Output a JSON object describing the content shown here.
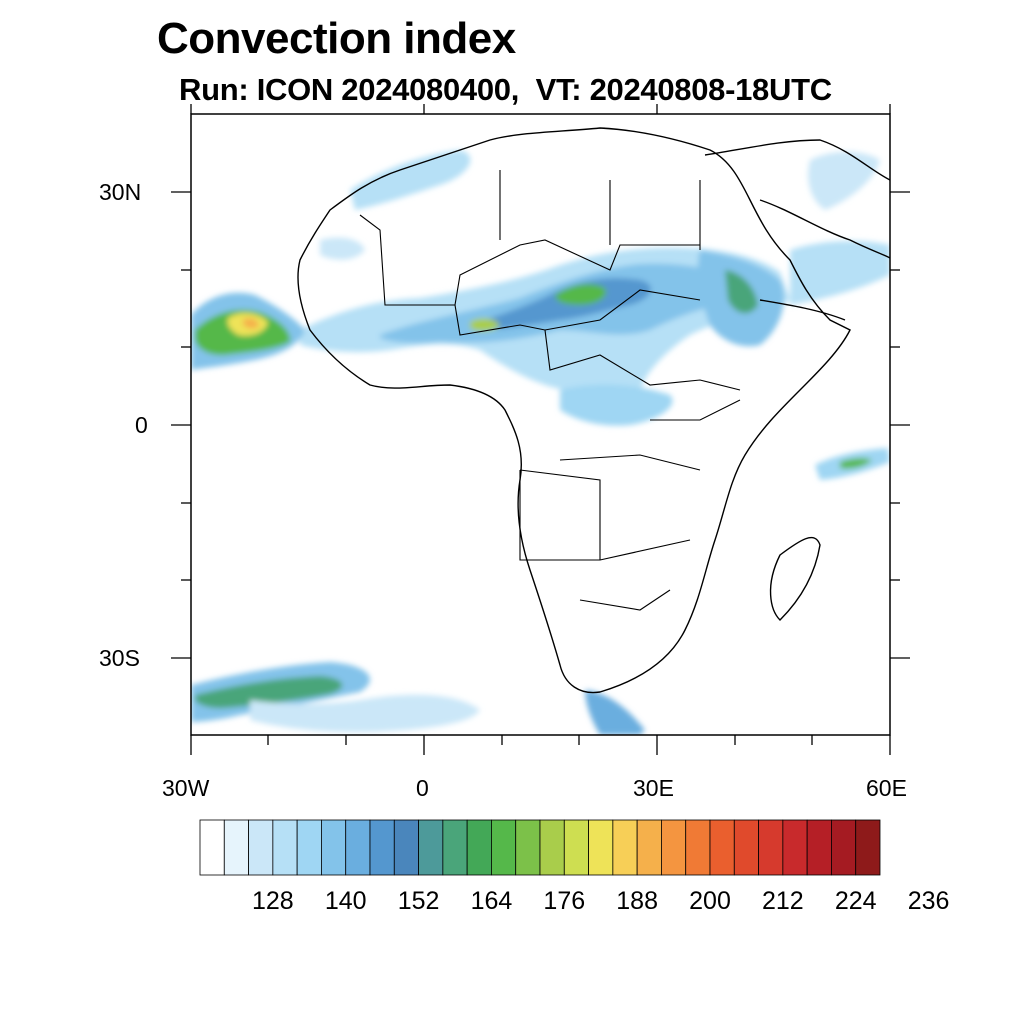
{
  "header": {
    "title": "Convection index",
    "subtitle": "Run: ICON 2024080400,  VT: 20240808-18UTC"
  },
  "map": {
    "region": "Africa",
    "lon_range": [
      -30,
      60
    ],
    "lat_range": [
      -40,
      40
    ],
    "y_axis_labels": [
      "30N",
      "0",
      "30S"
    ],
    "x_axis_labels": [
      "30W",
      "0",
      "30E",
      "60E"
    ]
  },
  "colorbar": {
    "labels": [
      "128",
      "140",
      "152",
      "164",
      "176",
      "188",
      "200",
      "212",
      "224",
      "236"
    ],
    "colors": [
      "#ffffff",
      "#e6f4fc",
      "#cbe7f8",
      "#b6e0f6",
      "#9fd6f3",
      "#83c3ea",
      "#6aaedf",
      "#5497cf",
      "#4a86bc",
      "#4d9a9a",
      "#4aa57a",
      "#43a857",
      "#55b84a",
      "#7cc149",
      "#a9cd4b",
      "#cede51",
      "#eee358",
      "#f7cf57",
      "#f5b04b",
      "#f49540",
      "#f07a35",
      "#ea5f2e",
      "#e04a2c",
      "#d63a2d",
      "#c82a2c",
      "#b51f26",
      "#a51b22",
      "#8e1a1a"
    ]
  }
}
